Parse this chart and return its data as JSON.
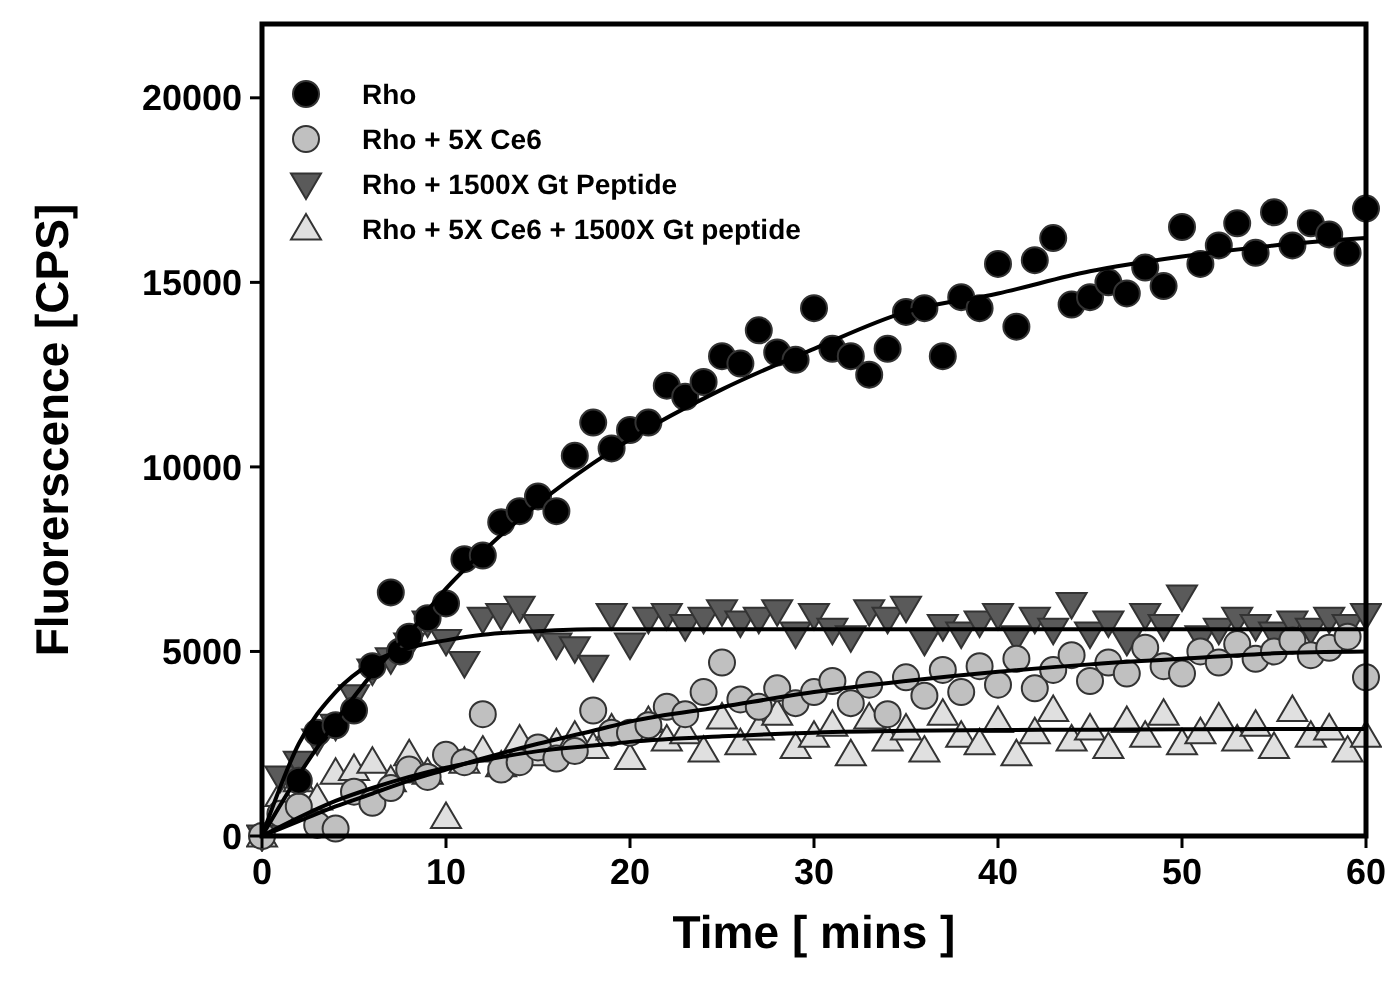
{
  "chart_data": {
    "type": "scatter",
    "xlabel": "Time [ mins ]",
    "ylabel": "Fluorerscence [CPS]",
    "xlim": [
      0,
      60
    ],
    "ylim": [
      0,
      22000
    ],
    "xticks": [
      0,
      10,
      20,
      30,
      40,
      50,
      60
    ],
    "yticks": [
      0,
      5000,
      10000,
      15000,
      20000
    ],
    "legend": "top left",
    "grid": false,
    "series": [
      {
        "name": "Rho",
        "marker": "circle",
        "color": "#000000",
        "x": [
          2,
          3,
          4,
          5,
          6,
          7,
          7.5,
          8,
          9,
          10,
          11,
          12,
          13,
          14,
          15,
          16,
          17,
          18,
          19,
          20,
          21,
          22,
          23,
          24,
          25,
          26,
          27,
          28,
          29,
          30,
          31,
          32,
          33,
          34,
          35,
          36,
          37,
          38,
          39,
          40,
          41,
          42,
          43,
          44,
          45,
          46,
          47,
          48,
          49,
          50,
          51,
          52,
          53,
          54,
          55,
          56,
          57,
          58,
          59,
          60
        ],
        "values": [
          1500,
          2800,
          3000,
          3400,
          4600,
          6600,
          5000,
          5400,
          5900,
          6300,
          7500,
          7600,
          8500,
          8800,
          9200,
          8800,
          10300,
          11200,
          10500,
          11000,
          11200,
          12200,
          11900,
          12300,
          13000,
          12800,
          13700,
          13100,
          12900,
          14300,
          13200,
          13000,
          12500,
          13200,
          14200,
          14300,
          13000,
          14600,
          14300,
          15500,
          13800,
          15600,
          16200,
          14400,
          14600,
          15000,
          14700,
          15400,
          14900,
          16500,
          15500,
          16000,
          16600,
          15800,
          16900,
          16000,
          16600,
          16300,
          15800,
          17000
        ]
      },
      {
        "name": "Rho + 5X Ce6",
        "marker": "circle",
        "color": "#c0c0c0",
        "x": [
          0,
          1,
          2,
          3,
          4,
          5,
          6,
          7,
          8,
          9,
          10,
          11,
          12,
          13,
          14,
          15,
          16,
          17,
          18,
          19,
          20,
          21,
          22,
          23,
          24,
          25,
          26,
          27,
          28,
          29,
          30,
          31,
          32,
          33,
          34,
          35,
          36,
          37,
          38,
          39,
          40,
          41,
          42,
          43,
          44,
          45,
          46,
          47,
          48,
          49,
          50,
          51,
          52,
          53,
          54,
          55,
          56,
          57,
          58,
          59,
          60
        ],
        "values": [
          0,
          600,
          800,
          300,
          200,
          1200,
          900,
          1300,
          1800,
          1600,
          2200,
          2000,
          3300,
          1800,
          2000,
          2400,
          2100,
          2300,
          3400,
          2800,
          2800,
          3000,
          3500,
          3300,
          3900,
          4700,
          3700,
          3500,
          4000,
          3600,
          3900,
          4200,
          3600,
          4100,
          3300,
          4300,
          3800,
          4500,
          3900,
          4600,
          4100,
          4800,
          4000,
          4500,
          4900,
          4200,
          4700,
          4400,
          5100,
          4600,
          4400,
          5000,
          4700,
          5200,
          4800,
          5000,
          5300,
          4900,
          5100,
          5400,
          4300
        ]
      },
      {
        "name": "Rho + 1500X Gt Peptide",
        "marker": "triangle-down",
        "color": "#5a5a5a",
        "x": [
          0,
          1,
          2,
          3,
          4,
          5,
          6,
          7,
          8,
          9,
          10,
          11,
          12,
          13,
          14,
          15,
          16,
          17,
          18,
          19,
          20,
          21,
          22,
          23,
          24,
          25,
          26,
          27,
          28,
          29,
          30,
          31,
          32,
          33,
          34,
          35,
          36,
          37,
          38,
          39,
          40,
          41,
          42,
          43,
          44,
          45,
          46,
          47,
          48,
          49,
          50,
          51,
          52,
          53,
          54,
          55,
          56,
          57,
          58,
          59,
          60
        ],
        "values": [
          0,
          1600,
          2000,
          2600,
          3000,
          3800,
          4500,
          4800,
          5200,
          5800,
          5300,
          4700,
          5900,
          6000,
          6200,
          5700,
          5200,
          5100,
          4600,
          6000,
          5200,
          5900,
          6000,
          5700,
          5900,
          6100,
          5800,
          5900,
          6100,
          5500,
          6000,
          5600,
          5400,
          6100,
          5900,
          6200,
          5300,
          5700,
          5500,
          5800,
          6000,
          5400,
          5900,
          5600,
          6300,
          5500,
          5800,
          5300,
          6000,
          5700,
          6500,
          5400,
          5600,
          5900,
          5700,
          5500,
          5800,
          5600,
          5900,
          5700,
          6000
        ]
      },
      {
        "name": "Rho + 5X Ce6 + 1500X Gt peptide",
        "marker": "triangle",
        "color": "#e0e0e0",
        "x": [
          0,
          1,
          2,
          3,
          4,
          5,
          6,
          7,
          8,
          9,
          10,
          11,
          12,
          13,
          14,
          15,
          16,
          17,
          18,
          19,
          20,
          21,
          22,
          23,
          24,
          25,
          26,
          27,
          28,
          29,
          30,
          31,
          32,
          33,
          34,
          35,
          36,
          37,
          38,
          39,
          40,
          41,
          42,
          43,
          44,
          45,
          46,
          47,
          48,
          49,
          50,
          51,
          52,
          53,
          54,
          55,
          56,
          57,
          58,
          59,
          60
        ],
        "values": [
          0,
          1100,
          1500,
          1000,
          1700,
          1800,
          2000,
          1500,
          2200,
          1700,
          500,
          2000,
          2300,
          1900,
          2600,
          2200,
          2500,
          2700,
          2400,
          2900,
          2100,
          3100,
          2600,
          2800,
          2300,
          3200,
          2500,
          2900,
          3300,
          2400,
          2700,
          3000,
          2200,
          3200,
          2600,
          2900,
          2300,
          3300,
          2700,
          2500,
          3100,
          2200,
          2800,
          3400,
          2600,
          2900,
          2400,
          3100,
          2700,
          3300,
          2500,
          2800,
          3200,
          2600,
          3000,
          2400,
          3400,
          2700,
          2900,
          2300,
          2700
        ]
      },
      {
        "type": "line",
        "marker": "none",
        "color": "#000000",
        "x": [
          0,
          2,
          4,
          6,
          8,
          10,
          12,
          15,
          18,
          20,
          25,
          30,
          35,
          40,
          45,
          50,
          55,
          60
        ],
        "values": [
          0,
          1650,
          3100,
          4400,
          5500,
          6700,
          7700,
          9000,
          10100,
          10750,
          12100,
          13200,
          14200,
          14700,
          15300,
          15700,
          16000,
          16200
        ]
      },
      {
        "type": "line",
        "marker": "none",
        "color": "#000000",
        "x": [
          0,
          2,
          4,
          6,
          8,
          10,
          12,
          15,
          18,
          20,
          25,
          30,
          35,
          40,
          45,
          50,
          55,
          60
        ],
        "values": [
          0,
          2500,
          3900,
          4700,
          5100,
          5300,
          5450,
          5550,
          5600,
          5600,
          5600,
          5600,
          5600,
          5600,
          5600,
          5600,
          5600,
          5600
        ]
      },
      {
        "type": "line",
        "marker": "none",
        "color": "#000000",
        "x": [
          0,
          2,
          4,
          6,
          8,
          10,
          12,
          15,
          18,
          20,
          25,
          30,
          35,
          40,
          45,
          50,
          55,
          60
        ],
        "values": [
          0,
          400,
          800,
          1150,
          1500,
          1800,
          2100,
          2500,
          2850,
          3100,
          3500,
          3900,
          4200,
          4450,
          4650,
          4800,
          4950,
          5000
        ]
      },
      {
        "type": "line",
        "marker": "none",
        "color": "#000000",
        "x": [
          0,
          2,
          4,
          6,
          8,
          10,
          12,
          15,
          18,
          20,
          25,
          30,
          35,
          40,
          45,
          50,
          55,
          60
        ],
        "values": [
          0,
          500,
          950,
          1300,
          1600,
          1850,
          2050,
          2300,
          2450,
          2550,
          2700,
          2800,
          2850,
          2870,
          2880,
          2890,
          2900,
          2900
        ]
      }
    ]
  }
}
